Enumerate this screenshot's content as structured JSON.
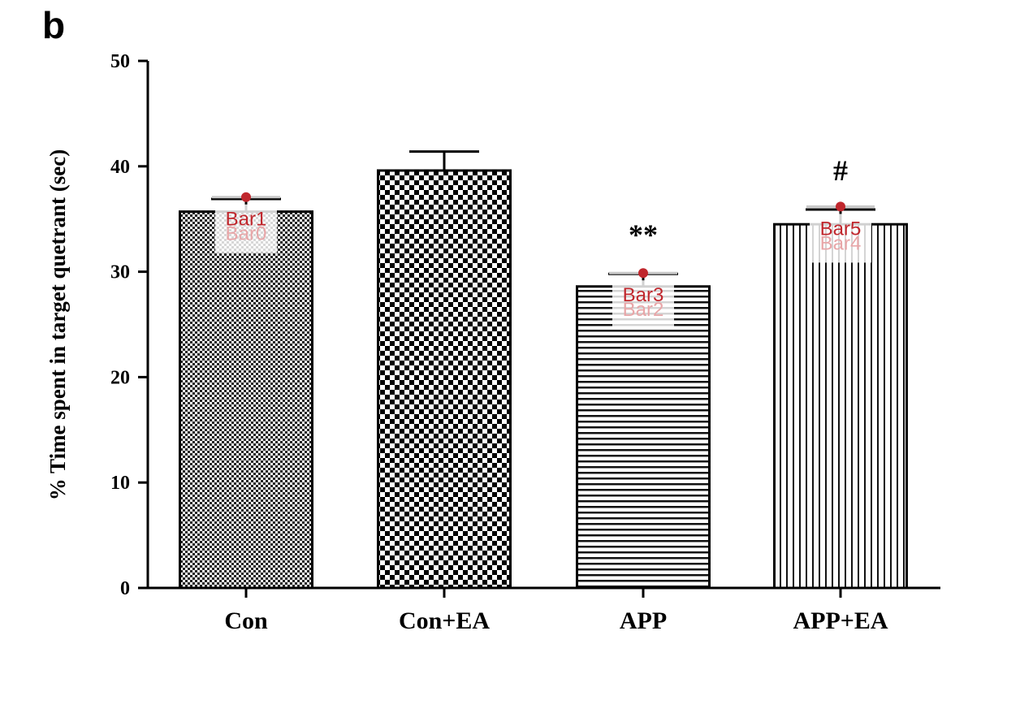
{
  "panel_letter": "b",
  "colors": {
    "axis": "#000000",
    "annotation": "#c0272d",
    "annotation_faded": "#e8a6a8",
    "annotation_line": "#c8c8c8"
  },
  "chart_data": {
    "type": "bar",
    "title": "",
    "xlabel": "",
    "ylabel": "% Time spent in target quetrant (sec)",
    "ylim": [
      0,
      50
    ],
    "yticks": [
      "0",
      "10",
      "20",
      "30",
      "40",
      "50"
    ],
    "grid": false,
    "categories": [
      "Con",
      "Con+EA",
      "APP",
      "APP+EA"
    ],
    "values": [
      35.7,
      39.6,
      28.6,
      34.5
    ],
    "errors": [
      1.2,
      1.8,
      1.2,
      1.4
    ],
    "patterns": [
      "fine-checker",
      "coarse-checker",
      "horizontal-lines",
      "vertical-lines"
    ],
    "significance": [
      "",
      "",
      "**",
      "#"
    ],
    "annotations": [
      {
        "bar": 0,
        "top_label": "Bar1",
        "bottom_label": "Bar0",
        "y": 37.0
      },
      {
        "bar": 2,
        "top_label": "Bar3",
        "bottom_label": "Bar2",
        "y": 29.8
      },
      {
        "bar": 3,
        "top_label": "Bar5",
        "bottom_label": "Bar4",
        "y": 36.1
      }
    ]
  }
}
